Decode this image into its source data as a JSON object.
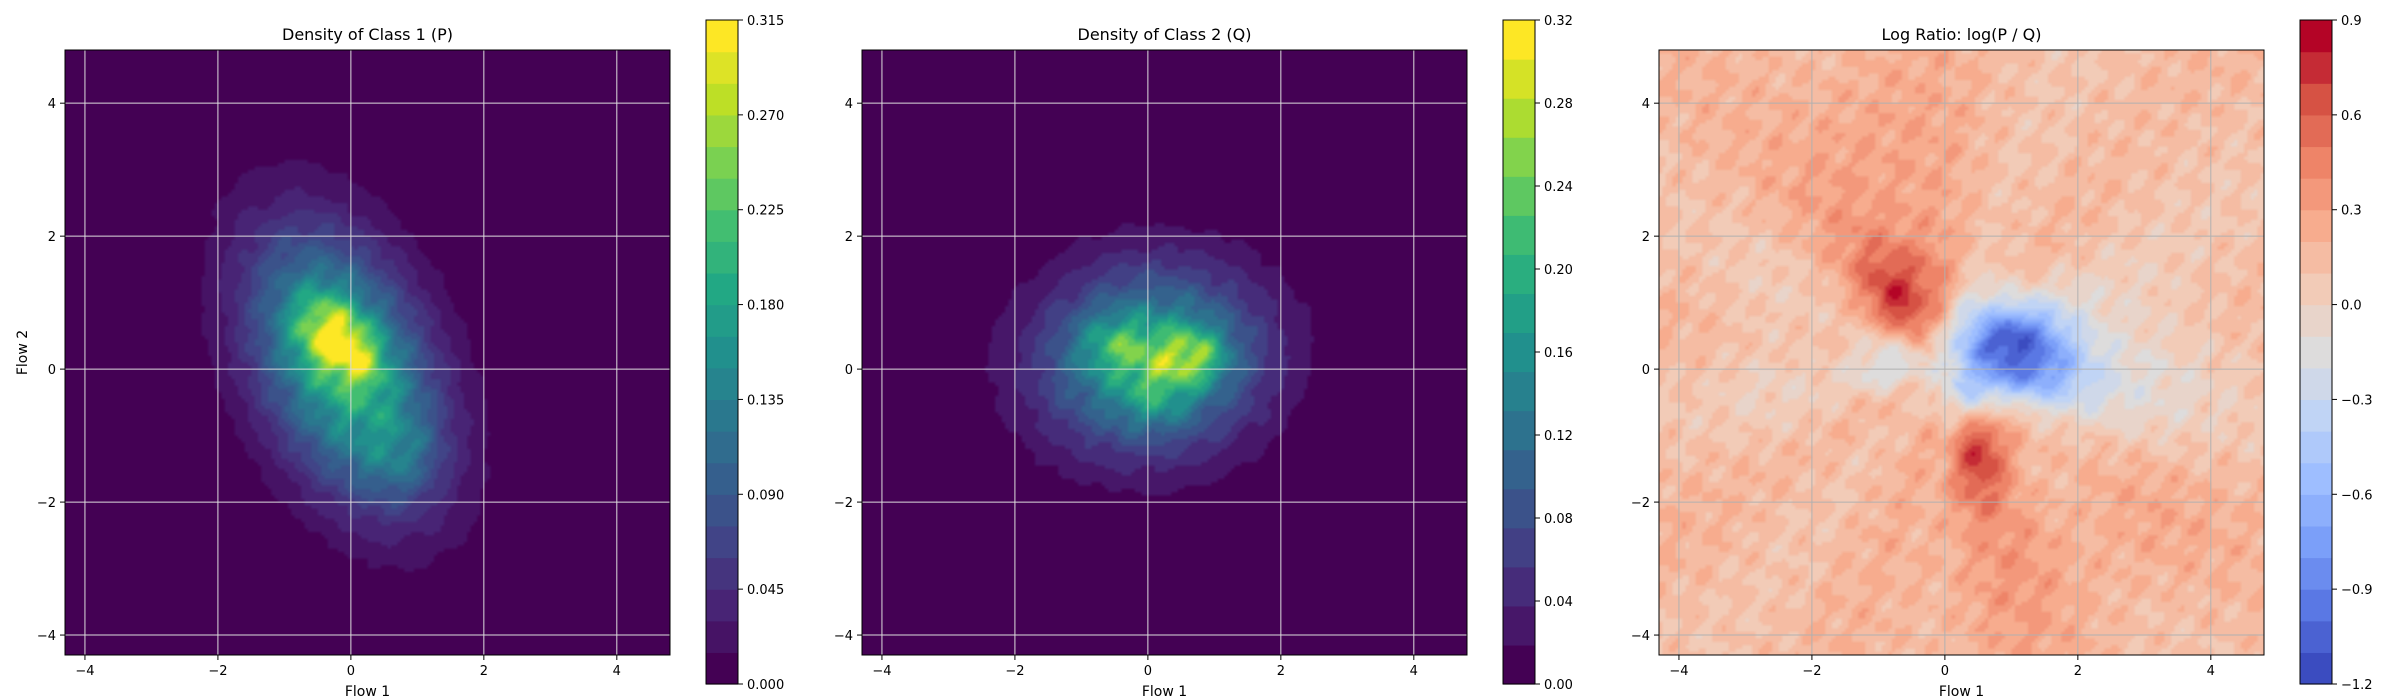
{
  "chart_data": [
    {
      "type": "heatmap",
      "title": "Density of Class 1 (P)",
      "xlabel": "Flow 1",
      "ylabel": "Flow 2",
      "xlim": [
        -4.3,
        4.8
      ],
      "ylim": [
        -4.3,
        4.8
      ],
      "x_ticks": [
        -4,
        -2,
        0,
        2,
        4
      ],
      "y_ticks": [
        -4,
        -2,
        0,
        2,
        4
      ],
      "x_tick_labels": [
        "−4",
        "−2",
        "0",
        "2",
        "4"
      ],
      "y_tick_labels": [
        "−4",
        "−2",
        "0",
        "2",
        "4"
      ],
      "grid": true,
      "colormap": "viridis",
      "colorbar": {
        "min": 0.0,
        "max": 0.315,
        "levels": 21,
        "ticks": [
          0.0,
          0.045,
          0.09,
          0.135,
          0.18,
          0.225,
          0.27,
          0.315
        ],
        "tick_labels": [
          "0.000",
          "0.045",
          "0.090",
          "0.135",
          "0.180",
          "0.225",
          "0.270",
          "0.315"
        ]
      },
      "density_blobs": [
        {
          "cx": -0.1,
          "cy": 0.05,
          "sx": 0.95,
          "sy": 1.35,
          "rho": -0.38,
          "w": 0.2
        },
        {
          "cx": -0.35,
          "cy": 0.55,
          "sx": 0.35,
          "sy": 0.4,
          "rho": -0.2,
          "w": 0.12
        },
        {
          "cx": 0.1,
          "cy": 0.2,
          "sx": 0.3,
          "sy": 0.35,
          "rho": -0.3,
          "w": 0.08
        },
        {
          "cx": 0.75,
          "cy": -1.3,
          "sx": 0.4,
          "sy": 0.45,
          "rho": 0.0,
          "w": 0.04
        }
      ]
    },
    {
      "type": "heatmap",
      "title": "Density of Class 2 (Q)",
      "xlabel": "Flow 1",
      "ylabel": "",
      "xlim": [
        -4.3,
        4.8
      ],
      "ylim": [
        -4.3,
        4.8
      ],
      "x_ticks": [
        -4,
        -2,
        0,
        2,
        4
      ],
      "y_ticks": [
        -4,
        -2,
        0,
        2,
        4
      ],
      "x_tick_labels": [
        "−4",
        "−2",
        "0",
        "2",
        "4"
      ],
      "y_tick_labels": [
        "−4",
        "−2",
        "0",
        "2",
        "4"
      ],
      "grid": true,
      "colormap": "viridis",
      "colorbar": {
        "min": 0.0,
        "max": 0.32,
        "levels": 17,
        "ticks": [
          0.0,
          0.04,
          0.08,
          0.12,
          0.16,
          0.2,
          0.24,
          0.28,
          0.32
        ],
        "tick_labels": [
          "0.00",
          "0.04",
          "0.08",
          "0.12",
          "0.16",
          "0.20",
          "0.24",
          "0.28",
          "0.32"
        ]
      },
      "density_blobs": [
        {
          "cx": 0.05,
          "cy": 0.15,
          "sx": 1.15,
          "sy": 0.95,
          "rho": 0.05,
          "w": 0.18
        },
        {
          "cx": 0.65,
          "cy": 0.2,
          "sx": 0.35,
          "sy": 0.3,
          "rho": 0.0,
          "w": 0.12
        },
        {
          "cx": -0.45,
          "cy": 0.35,
          "sx": 0.4,
          "sy": 0.3,
          "rho": 0.0,
          "w": 0.07
        },
        {
          "cx": 0.1,
          "cy": -0.35,
          "sx": 0.35,
          "sy": 0.35,
          "rho": 0.0,
          "w": 0.05
        }
      ]
    },
    {
      "type": "heatmap",
      "title": "Log Ratio: log(P / Q)",
      "xlabel": "Flow 1",
      "ylabel": "",
      "xlim": [
        -4.3,
        4.8
      ],
      "ylim": [
        -4.3,
        4.8
      ],
      "x_ticks": [
        -4,
        -2,
        0,
        2,
        4
      ],
      "y_ticks": [
        -4,
        -2,
        0,
        2,
        4
      ],
      "x_tick_labels": [
        "−4",
        "−2",
        "0",
        "2",
        "4"
      ],
      "y_tick_labels": [
        "−4",
        "−2",
        "0",
        "2",
        "4"
      ],
      "grid": true,
      "colormap": "coolwarm",
      "colorbar": {
        "min": -1.2,
        "max": 0.9,
        "levels": 21,
        "ticks": [
          -1.2,
          -0.9,
          -0.6,
          -0.3,
          0.0,
          0.3,
          0.6,
          0.9
        ],
        "tick_labels": [
          "−1.2",
          "−0.9",
          "−0.6",
          "−0.3",
          "0.0",
          "0.3",
          "0.6",
          "0.9"
        ]
      },
      "background_value": 0.15,
      "ratio_blobs": [
        {
          "cx": -0.55,
          "cy": 1.0,
          "sx": 0.5,
          "sy": 0.65,
          "rho": -0.3,
          "w": 0.6
        },
        {
          "cx": 0.55,
          "cy": -1.2,
          "sx": 0.35,
          "sy": 0.6,
          "rho": 0.2,
          "w": 0.5
        },
        {
          "cx": 1.0,
          "cy": 0.3,
          "sx": 0.7,
          "sy": 0.5,
          "rho": -0.2,
          "w": -1.2
        },
        {
          "cx": -0.8,
          "cy": 0.15,
          "sx": 0.45,
          "sy": 0.3,
          "rho": 0.0,
          "w": -0.45
        },
        {
          "cx": 0.4,
          "cy": -0.4,
          "sx": 0.35,
          "sy": 0.3,
          "rho": 0.0,
          "w": -0.4
        },
        {
          "cx": 2.6,
          "cy": 0.1,
          "sx": 1.2,
          "sy": 0.9,
          "rho": 0.0,
          "w": -0.25
        },
        {
          "cx": -2.5,
          "cy": 0.3,
          "sx": 0.8,
          "sy": 1.1,
          "rho": 0.0,
          "w": -0.12
        },
        {
          "cx": -1.2,
          "cy": 3.0,
          "sx": 0.8,
          "sy": 1.3,
          "rho": 0.0,
          "w": 0.18
        },
        {
          "cx": 0.8,
          "cy": -3.0,
          "sx": 0.8,
          "sy": 1.3,
          "rho": 0.0,
          "w": 0.15
        },
        {
          "cx": 2.8,
          "cy": -2.5,
          "sx": 0.8,
          "sy": 0.8,
          "rho": 0.0,
          "w": 0.1
        },
        {
          "cx": 3.2,
          "cy": 3.5,
          "sx": 1.0,
          "sy": 1.0,
          "rho": 0.0,
          "w": -0.05
        }
      ]
    }
  ]
}
